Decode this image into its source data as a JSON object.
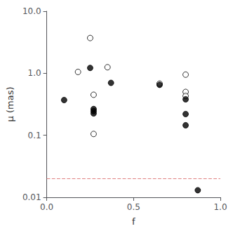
{
  "chart_data": {
    "type": "scatter",
    "xlabel": "f",
    "ylabel": "μ (mas)",
    "log": "y",
    "grid": false,
    "xlim": [
      0.0,
      1.0
    ],
    "ylim": [
      0.01,
      10.0
    ],
    "xticks": [
      {
        "value": 0.0,
        "label": "0.0"
      },
      0.5,
      {
        "value": 1.0,
        "label": "1.0"
      }
    ],
    "yticks": [
      0.01,
      0.1,
      {
        "value": 1.0,
        "label": "1.0"
      },
      {
        "value": 10.0,
        "label": "10.0"
      }
    ],
    "series": [
      {
        "type": "scatter",
        "marker": "open_circle",
        "color": "#000000",
        "x": [
          0.18,
          0.25,
          0.27,
          0.35,
          0.27,
          0.65,
          0.8,
          0.8,
          0.8
        ],
        "values": [
          1.05,
          3.7,
          0.45,
          1.25,
          0.105,
          0.68,
          0.95,
          0.5,
          0.43
        ]
      },
      {
        "type": "scatter",
        "marker": "circle",
        "color": "#000000",
        "x": [
          0.1,
          0.25,
          0.27,
          0.27,
          0.27,
          0.37,
          0.65,
          0.8,
          0.8,
          0.8,
          0.87
        ],
        "values": [
          0.37,
          1.22,
          0.265,
          0.245,
          0.225,
          0.7,
          0.65,
          0.38,
          0.22,
          0.145,
          0.013
        ]
      },
      {
        "type": "hline",
        "line_style": "dashed",
        "color": "#e08080",
        "values": [
          0.022
        ]
      }
    ]
  }
}
